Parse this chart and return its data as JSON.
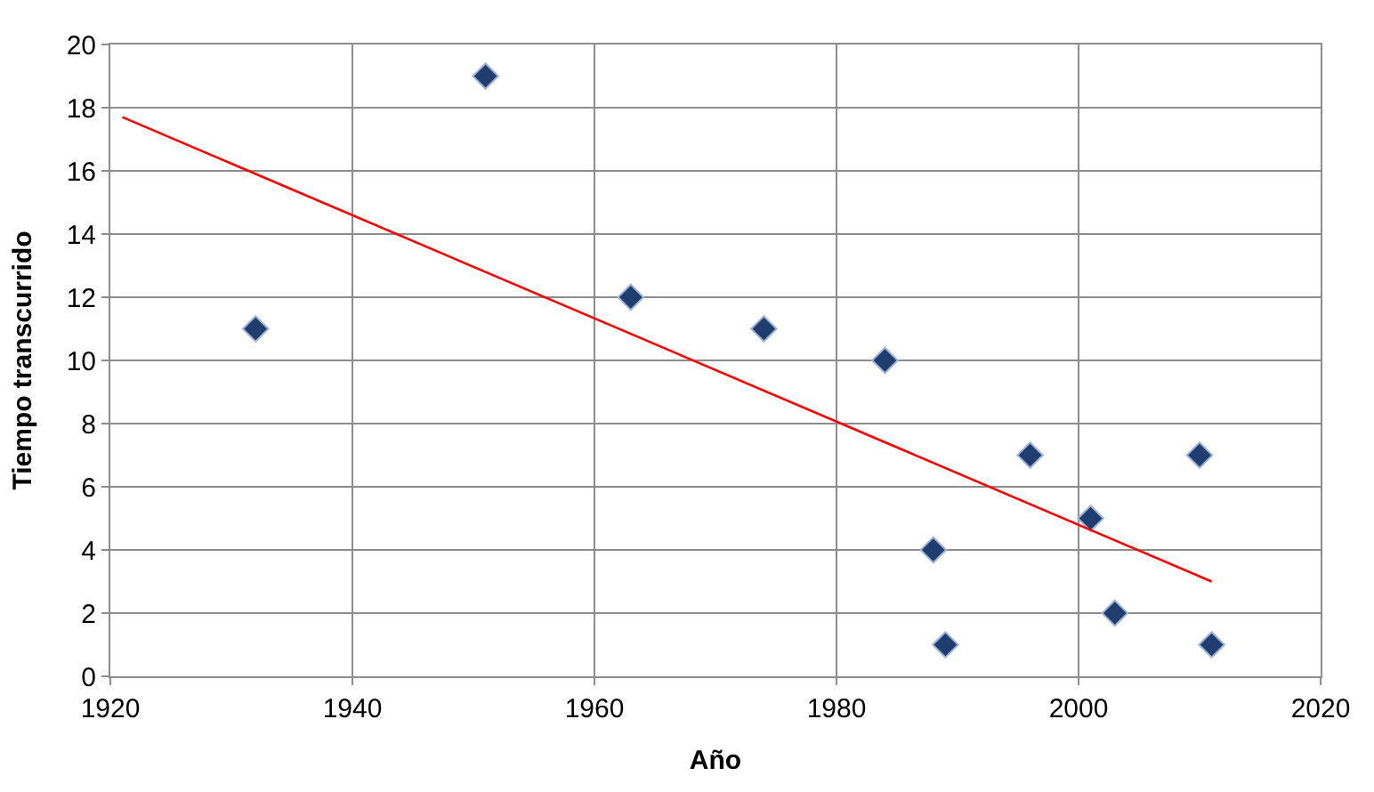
{
  "chart_data": {
    "type": "scatter",
    "xlabel": "Año",
    "ylabel": "Tiempo transcurrido",
    "xlim": [
      1920,
      2020
    ],
    "xticks": [
      1920,
      1940,
      1960,
      1980,
      2000,
      2020
    ],
    "ylim": [
      0,
      20
    ],
    "yticks": [
      0,
      2,
      4,
      6,
      8,
      10,
      12,
      14,
      16,
      18,
      20
    ],
    "grid": true,
    "marker": "diamond",
    "series": [
      {
        "color": "#1f3d6e",
        "x": [
          1932,
          1951,
          1963,
          1974,
          1984,
          1988,
          1989,
          1996,
          2001,
          2003,
          2010,
          2011
        ],
        "values": [
          11,
          19,
          12,
          11,
          10,
          4,
          1,
          7,
          5,
          2,
          7,
          1
        ]
      },
      {
        "type": "line",
        "color": "#ff0000",
        "x": [
          1921,
          2011
        ],
        "values": [
          17.7,
          3.0
        ],
        "marker": "none",
        "line_style": "solid"
      }
    ]
  }
}
